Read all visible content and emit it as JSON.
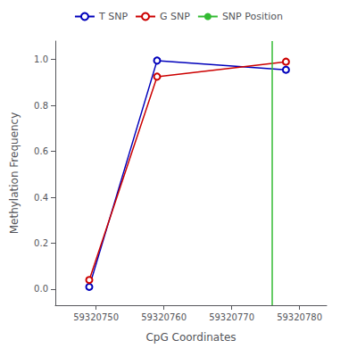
{
  "chart_data": {
    "type": "line",
    "xlabel": "CpG Coordinates",
    "ylabel": "Methylation Frequency",
    "x": [
      59320749,
      59320759,
      59320778
    ],
    "series": [
      {
        "name": "T SNP",
        "color": "#0000bb",
        "marker": "circle",
        "values": [
          0.01,
          0.995,
          0.955
        ]
      },
      {
        "name": "G SNP",
        "color": "#cc0000",
        "marker": "circle",
        "values": [
          0.04,
          0.925,
          0.99
        ]
      },
      {
        "name": "SNP Position",
        "type": "vline",
        "color": "#33bb33",
        "x": [
          59320776
        ]
      }
    ],
    "xlim": [
      59320744,
      59320784
    ],
    "xticks": [
      59320750,
      59320760,
      59320770,
      59320780
    ],
    "ylim": [
      -0.07,
      1.08
    ],
    "yticks": [
      {
        "value": 0,
        "label": "0.0"
      },
      0.2,
      0.4,
      0.6,
      0.8,
      {
        "value": 1,
        "label": "1.0"
      }
    ],
    "grid": false,
    "legend": "top"
  }
}
